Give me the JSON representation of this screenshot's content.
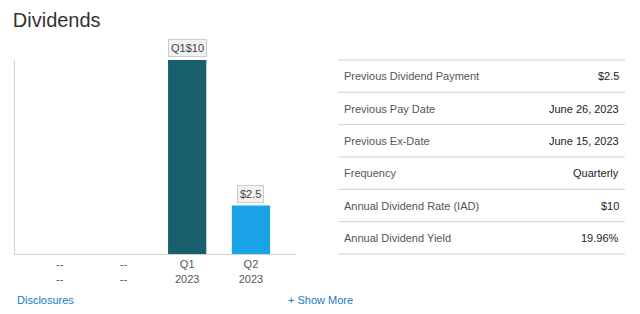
{
  "chart_data": {
    "type": "bar",
    "title": "Dividends",
    "categories": [
      "--\n--",
      "--\n--",
      "Q1\n2023",
      "Q2\n2023"
    ],
    "values": [
      0,
      0,
      10,
      2.5
    ],
    "colors": [
      "#dddddd",
      "#dddddd",
      "#1a5f6e",
      "#1aa3e8"
    ],
    "ylim": [
      0,
      10
    ],
    "grid": false,
    "tick_labels": "x",
    "annotations": [
      {
        "text": "Q1$10",
        "x": 2,
        "y": 10
      },
      {
        "text": "$2.5",
        "x": 3,
        "y": 2.5
      },
      {
        "text": "Disclosures"
      },
      {
        "text": "+ Show More"
      }
    ],
    "table": [
      {
        "label": "Previous Dividend Payment",
        "value": "$2.5"
      },
      {
        "label": "Previous Pay Date",
        "value": "June 26, 2023"
      },
      {
        "label": "Previous Ex-Date",
        "value": "June 15, 2023"
      },
      {
        "label": "Frequency",
        "value": "Quarterly"
      },
      {
        "label": "Annual Dividend Rate (IAD)",
        "value": "$10"
      },
      {
        "label": "Annual Dividend Yield",
        "value": "19.96%"
      }
    ]
  }
}
